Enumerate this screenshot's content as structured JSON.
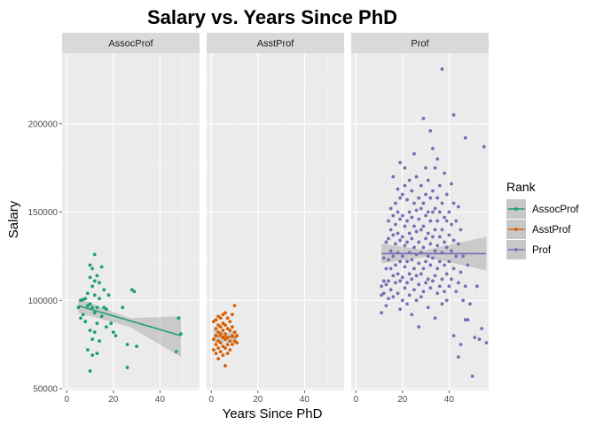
{
  "chart_data": {
    "type": "scatter",
    "title": "Salary vs. Years Since PhD",
    "xlabel": "Years Since PhD",
    "ylabel": "Salary",
    "xlim": [
      -2,
      57
    ],
    "ylim": [
      49000,
      240000
    ],
    "x_ticks": [
      0,
      20,
      40
    ],
    "y_ticks": [
      50000,
      100000,
      150000,
      200000
    ],
    "y_tick_labels": [
      "50000",
      "100000",
      "150000",
      "200000"
    ],
    "grid": true,
    "legend_title": "Rank",
    "legend_position": "right",
    "panels": [
      {
        "name": "AssocProf",
        "color": "#1B9E77",
        "trend": {
          "x": [
            5,
            49
          ],
          "y": [
            97000,
            80000
          ]
        },
        "band": {
          "x": [
            5,
            27,
            49
          ],
          "upper": [
            101000,
            90000,
            91000
          ],
          "lower": [
            93000,
            85000,
            68000
          ]
        },
        "points": [
          [
            5,
            96000
          ],
          [
            6,
            90000
          ],
          [
            6,
            100000
          ],
          [
            7,
            92000
          ],
          [
            7,
            100500
          ],
          [
            8,
            88000
          ],
          [
            8,
            101000
          ],
          [
            9,
            104000
          ],
          [
            9,
            97000
          ],
          [
            9,
            72000
          ],
          [
            10,
            120000
          ],
          [
            10,
            113000
          ],
          [
            10,
            98000
          ],
          [
            10,
            83000
          ],
          [
            10,
            60000
          ],
          [
            11,
            118000
          ],
          [
            11,
            108000
          ],
          [
            11,
            96000
          ],
          [
            11,
            78000
          ],
          [
            11,
            69000
          ],
          [
            12,
            126000
          ],
          [
            12,
            111000
          ],
          [
            12,
            103000
          ],
          [
            12,
            93000
          ],
          [
            12,
            82000
          ],
          [
            13,
            114000
          ],
          [
            13,
            96000
          ],
          [
            13,
            87000
          ],
          [
            13,
            70000
          ],
          [
            14,
            110000
          ],
          [
            14,
            101000
          ],
          [
            14,
            77000
          ],
          [
            15,
            119000
          ],
          [
            15,
            91000
          ],
          [
            16,
            106000
          ],
          [
            16,
            96000
          ],
          [
            17,
            95000
          ],
          [
            17,
            85000
          ],
          [
            18,
            103000
          ],
          [
            19,
            87000
          ],
          [
            20,
            82000
          ],
          [
            21,
            80000
          ],
          [
            24,
            96000
          ],
          [
            26,
            62000
          ],
          [
            26,
            75000
          ],
          [
            28,
            106000
          ],
          [
            29,
            105000
          ],
          [
            30,
            74000
          ],
          [
            47,
            71000
          ],
          [
            48,
            90000
          ],
          [
            49,
            81000
          ]
        ]
      },
      {
        "name": "AsstProf",
        "color": "#D95F02",
        "trend": {
          "x": [
            1,
            11
          ],
          "y": [
            80000,
            79000
          ]
        },
        "band": {
          "x": [
            1,
            6,
            11
          ],
          "upper": [
            84000,
            81500,
            83000
          ],
          "lower": [
            76000,
            76500,
            75000
          ]
        },
        "points": [
          [
            1,
            88000
          ],
          [
            1,
            78000
          ],
          [
            1,
            72000
          ],
          [
            2,
            89000
          ],
          [
            2,
            84000
          ],
          [
            2,
            80000
          ],
          [
            2,
            75000
          ],
          [
            2,
            70000
          ],
          [
            3,
            91000
          ],
          [
            3,
            86000
          ],
          [
            3,
            82000
          ],
          [
            3,
            77000
          ],
          [
            3,
            73000
          ],
          [
            3,
            67000
          ],
          [
            4,
            90000
          ],
          [
            4,
            85000
          ],
          [
            4,
            81000
          ],
          [
            4,
            76000
          ],
          [
            4,
            71000
          ],
          [
            5,
            92000
          ],
          [
            5,
            87000
          ],
          [
            5,
            83000
          ],
          [
            5,
            79000
          ],
          [
            5,
            74000
          ],
          [
            5,
            69000
          ],
          [
            6,
            93000
          ],
          [
            6,
            86000
          ],
          [
            6,
            81000
          ],
          [
            6,
            78000
          ],
          [
            6,
            73000
          ],
          [
            6,
            63000
          ],
          [
            7,
            90000
          ],
          [
            7,
            84000
          ],
          [
            7,
            79000
          ],
          [
            7,
            75000
          ],
          [
            7,
            70000
          ],
          [
            8,
            88000
          ],
          [
            8,
            83000
          ],
          [
            8,
            77000
          ],
          [
            8,
            72000
          ],
          [
            9,
            92000
          ],
          [
            9,
            85000
          ],
          [
            9,
            80000
          ],
          [
            9,
            75000
          ],
          [
            10,
            97000
          ],
          [
            10,
            82000
          ],
          [
            10,
            77000
          ],
          [
            11,
            80000
          ],
          [
            11,
            76000
          ]
        ]
      },
      {
        "name": "Prof",
        "color": "#7570B3",
        "trend": {
          "x": [
            11,
            56
          ],
          "y": [
            126500,
            126500
          ]
        },
        "band": {
          "x": [
            11,
            30,
            56
          ],
          "upper": [
            132000,
            128500,
            136000
          ],
          "lower": [
            121000,
            124500,
            117000
          ]
        },
        "points": [
          [
            11,
            108000
          ],
          [
            11,
            103000
          ],
          [
            11,
            93000
          ],
          [
            12,
            124000
          ],
          [
            12,
            111000
          ],
          [
            12,
            104000
          ],
          [
            13,
            133000
          ],
          [
            13,
            118000
          ],
          [
            13,
            109000
          ],
          [
            13,
            97000
          ],
          [
            14,
            145000
          ],
          [
            14,
            135000
          ],
          [
            14,
            123000
          ],
          [
            14,
            111000
          ],
          [
            14,
            101000
          ],
          [
            15,
            152000
          ],
          [
            15,
            140000
          ],
          [
            15,
            128000
          ],
          [
            15,
            118000
          ],
          [
            15,
            106000
          ],
          [
            16,
            170000
          ],
          [
            16,
            148000
          ],
          [
            16,
            137000
          ],
          [
            16,
            125000
          ],
          [
            16,
            114000
          ],
          [
            16,
            102000
          ],
          [
            17,
            155000
          ],
          [
            17,
            143000
          ],
          [
            17,
            132000
          ],
          [
            17,
            120000
          ],
          [
            17,
            110000
          ],
          [
            18,
            163000
          ],
          [
            18,
            150000
          ],
          [
            18,
            138000
          ],
          [
            18,
            127000
          ],
          [
            18,
            115000
          ],
          [
            18,
            104000
          ],
          [
            19,
            178000
          ],
          [
            19,
            158000
          ],
          [
            19,
            146000
          ],
          [
            19,
            134000
          ],
          [
            19,
            122000
          ],
          [
            19,
            111000
          ],
          [
            19,
            95000
          ],
          [
            20,
            160000
          ],
          [
            20,
            148000
          ],
          [
            20,
            136000
          ],
          [
            20,
            125000
          ],
          [
            20,
            113000
          ],
          [
            20,
            100000
          ],
          [
            21,
            175000
          ],
          [
            21,
            165000
          ],
          [
            21,
            142000
          ],
          [
            21,
            131000
          ],
          [
            21,
            119000
          ],
          [
            21,
            107000
          ],
          [
            22,
            157000
          ],
          [
            22,
            145000
          ],
          [
            22,
            133000
          ],
          [
            22,
            122000
          ],
          [
            22,
            110000
          ],
          [
            22,
            98000
          ],
          [
            23,
            168000
          ],
          [
            23,
            150000
          ],
          [
            23,
            138000
          ],
          [
            23,
            127000
          ],
          [
            23,
            115000
          ],
          [
            23,
            103000
          ],
          [
            24,
            162000
          ],
          [
            24,
            147000
          ],
          [
            24,
            135000
          ],
          [
            24,
            123000
          ],
          [
            24,
            112000
          ],
          [
            24,
            92000
          ],
          [
            25,
            183000
          ],
          [
            25,
            155000
          ],
          [
            25,
            142000
          ],
          [
            25,
            130000
          ],
          [
            25,
            118000
          ],
          [
            25,
            106000
          ],
          [
            26,
            170000
          ],
          [
            26,
            151000
          ],
          [
            26,
            139000
          ],
          [
            26,
            126000
          ],
          [
            26,
            114000
          ],
          [
            26,
            100000
          ],
          [
            27,
            158000
          ],
          [
            27,
            146000
          ],
          [
            27,
            133000
          ],
          [
            27,
            121000
          ],
          [
            27,
            109000
          ],
          [
            27,
            85000
          ],
          [
            28,
            165000
          ],
          [
            28,
            152000
          ],
          [
            28,
            140000
          ],
          [
            28,
            127000
          ],
          [
            28,
            115000
          ],
          [
            28,
            102000
          ],
          [
            29,
            203000
          ],
          [
            29,
            155000
          ],
          [
            29,
            142000
          ],
          [
            29,
            130000
          ],
          [
            29,
            118000
          ],
          [
            29,
            105000
          ],
          [
            30,
            175000
          ],
          [
            30,
            160000
          ],
          [
            30,
            148000
          ],
          [
            30,
            135000
          ],
          [
            30,
            122000
          ],
          [
            30,
            110000
          ],
          [
            31,
            168000
          ],
          [
            31,
            150000
          ],
          [
            31,
            138000
          ],
          [
            31,
            125000
          ],
          [
            31,
            112000
          ],
          [
            31,
            96000
          ],
          [
            32,
            196000
          ],
          [
            32,
            158000
          ],
          [
            32,
            145000
          ],
          [
            32,
            132000
          ],
          [
            32,
            120000
          ],
          [
            32,
            107000
          ],
          [
            33,
            186000
          ],
          [
            33,
            162000
          ],
          [
            33,
            150000
          ],
          [
            33,
            136000
          ],
          [
            33,
            124000
          ],
          [
            33,
            111000
          ],
          [
            34,
            175000
          ],
          [
            34,
            152000
          ],
          [
            34,
            140000
          ],
          [
            34,
            128000
          ],
          [
            34,
            114000
          ],
          [
            34,
            90000
          ],
          [
            35,
            180000
          ],
          [
            35,
            158000
          ],
          [
            35,
            145000
          ],
          [
            35,
            131000
          ],
          [
            35,
            118000
          ],
          [
            35,
            104000
          ],
          [
            36,
            165000
          ],
          [
            36,
            150000
          ],
          [
            36,
            136000
          ],
          [
            36,
            122000
          ],
          [
            36,
            108000
          ],
          [
            37,
            231000
          ],
          [
            37,
            155000
          ],
          [
            37,
            140000
          ],
          [
            37,
            127000
          ],
          [
            37,
            112000
          ],
          [
            37,
            98000
          ],
          [
            38,
            172000
          ],
          [
            38,
            147000
          ],
          [
            38,
            133000
          ],
          [
            38,
            120000
          ],
          [
            38,
            105000
          ],
          [
            39,
            160000
          ],
          [
            39,
            145000
          ],
          [
            39,
            130000
          ],
          [
            39,
            115000
          ],
          [
            39,
            100000
          ],
          [
            40,
            150000
          ],
          [
            40,
            137000
          ],
          [
            40,
            122000
          ],
          [
            40,
            108000
          ],
          [
            41,
            166000
          ],
          [
            41,
            143000
          ],
          [
            41,
            128000
          ],
          [
            41,
            112000
          ],
          [
            42,
            205000
          ],
          [
            42,
            155000
          ],
          [
            42,
            134000
          ],
          [
            42,
            118000
          ],
          [
            42,
            80000
          ],
          [
            43,
            145000
          ],
          [
            43,
            125000
          ],
          [
            43,
            105000
          ],
          [
            44,
            153000
          ],
          [
            44,
            132000
          ],
          [
            44,
            110000
          ],
          [
            44,
            68000
          ],
          [
            45,
            140000
          ],
          [
            45,
            116000
          ],
          [
            45,
            75000
          ],
          [
            46,
            125000
          ],
          [
            46,
            100000
          ],
          [
            47,
            192000
          ],
          [
            47,
            108000
          ],
          [
            47,
            89000
          ],
          [
            48,
            89000
          ],
          [
            48,
            120000
          ],
          [
            49,
            98000
          ],
          [
            50,
            57000
          ],
          [
            51,
            79000
          ],
          [
            52,
            108000
          ],
          [
            53,
            78000
          ],
          [
            54,
            84000
          ],
          [
            55,
            187000
          ],
          [
            56,
            76000
          ]
        ]
      }
    ]
  }
}
